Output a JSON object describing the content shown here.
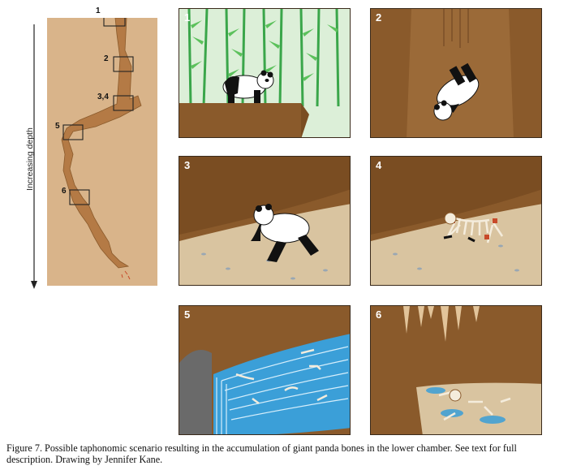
{
  "figure": {
    "axis_label": "Increasing depth",
    "overview_markers": [
      "1",
      "2",
      "3,4",
      "5",
      "6"
    ],
    "panels": [
      {
        "number": "1",
        "scene": "panda walking in bamboo forest near cave opening"
      },
      {
        "number": "2",
        "scene": "panda falling down the vertical shaft"
      },
      {
        "number": "3",
        "scene": "panda lying on sloping cave floor"
      },
      {
        "number": "4",
        "scene": "decomposing panda skeleton on cave floor"
      },
      {
        "number": "5",
        "scene": "bones washed along by flowing water"
      },
      {
        "number": "6",
        "scene": "bones accumulated in lower chamber under stalactites"
      }
    ]
  },
  "caption": {
    "text": "Figure 7.   Possible taphonomic scenario resulting in the accumulation of giant panda bones in the lower chamber. See text for full description. Drawing by Jennifer Kane."
  },
  "colors": {
    "rock": "#8a5a2b",
    "sand": "#d9c4a0",
    "bamboo": "#3aa64a",
    "water": "#3b9fd8",
    "sky": "#dcefd8"
  }
}
